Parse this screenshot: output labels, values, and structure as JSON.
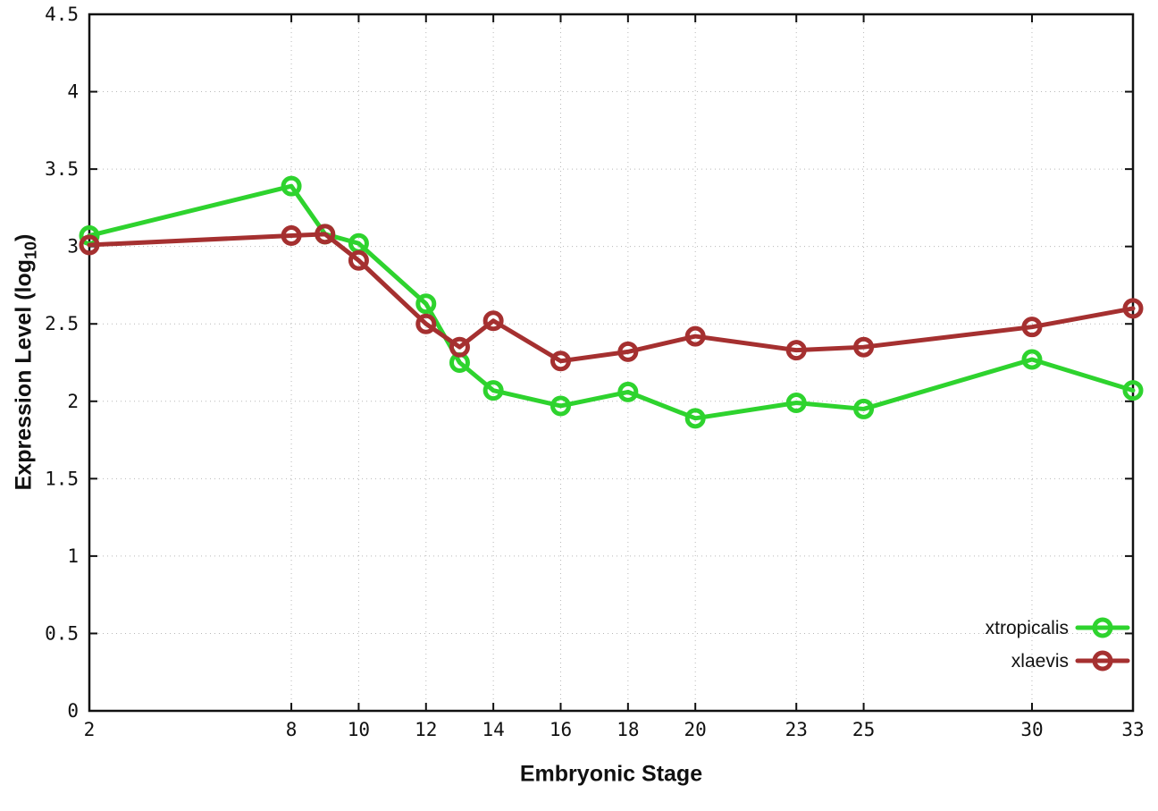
{
  "chart_data": {
    "type": "line",
    "title": "",
    "xlabel": "Embryonic Stage",
    "ylabel": "Expression Level (log10)",
    "ylabel_parts": {
      "main": "Expression Level (log",
      "sub": "10",
      "close": ")"
    },
    "x": [
      2,
      8,
      9,
      10,
      12,
      13,
      14,
      16,
      18,
      20,
      23,
      25,
      30,
      33
    ],
    "series": [
      {
        "name": "xtropicalis",
        "color": "#2ed32e",
        "marker": "open-circle",
        "values": [
          3.07,
          3.39,
          3.08,
          3.02,
          2.63,
          2.25,
          2.07,
          1.97,
          2.06,
          1.89,
          1.99,
          1.95,
          2.27,
          2.07
        ]
      },
      {
        "name": "xlaevis",
        "color": "#a53030",
        "marker": "open-circle",
        "values": [
          3.01,
          3.07,
          3.08,
          2.91,
          2.5,
          2.35,
          2.52,
          2.26,
          2.32,
          2.42,
          2.33,
          2.35,
          2.48,
          2.6
        ]
      }
    ],
    "x_tick_values": [
      2,
      8,
      10,
      12,
      14,
      16,
      18,
      20,
      23,
      25,
      30,
      33
    ],
    "x_tick_labels": [
      "2",
      "8",
      "10",
      "12",
      "14",
      "16",
      "18",
      "20",
      "23",
      "25",
      "30",
      "33"
    ],
    "y_tick_values": [
      0,
      0.5,
      1,
      1.5,
      2,
      2.5,
      3,
      3.5,
      4,
      4.5
    ],
    "y_tick_labels": [
      "0",
      "0.5",
      "1",
      "1.5",
      "2",
      "2.5",
      "3",
      "3.5",
      "4",
      "4.5"
    ],
    "xlim": [
      2,
      33
    ],
    "ylim": [
      0,
      4.5
    ],
    "grid": true,
    "grid_style": "dotted",
    "legend_position": "inside-right-lower",
    "colors": {
      "axis": "#111111",
      "grid": "#b8b8b8",
      "text": "#111111",
      "background": "#ffffff"
    }
  }
}
